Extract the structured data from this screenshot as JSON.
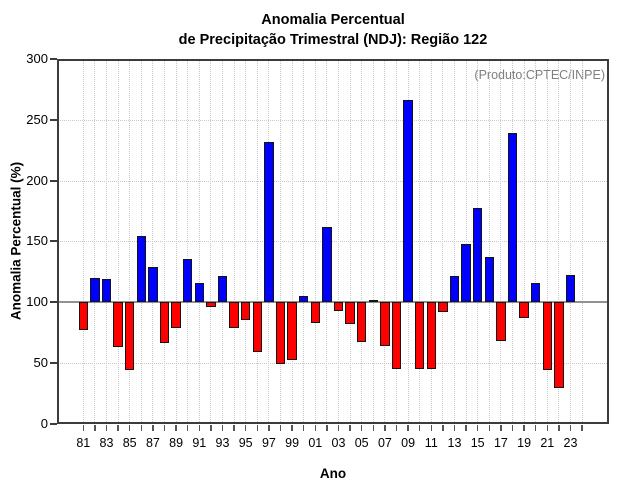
{
  "chart_data": {
    "type": "bar",
    "title_lines": [
      "Anomalia Percentual",
      "de Precipitação Trimestral (NDJ): Região 122"
    ],
    "annotation": "(Produto:CPTEC/INPE)",
    "xlabel": "Ano",
    "ylabel": "Anomalia Percentual (%)",
    "ylim": [
      0,
      300
    ],
    "y_ticks": [
      0,
      50,
      100,
      150,
      200,
      250,
      300
    ],
    "baseline": 100,
    "grid": "dotted vertical line per year, dotted horizontal line per 50 units, solid gray line at 100",
    "legend": "none",
    "x_labeled_ticks": [
      "81",
      "83",
      "85",
      "87",
      "89",
      "91",
      "93",
      "95",
      "97",
      "99",
      "01",
      "03",
      "05",
      "07",
      "09",
      "11",
      "13",
      "15",
      "17",
      "19",
      "21",
      "23"
    ],
    "categories": [
      "81",
      "82",
      "83",
      "84",
      "85",
      "86",
      "87",
      "88",
      "89",
      "90",
      "91",
      "92",
      "93",
      "94",
      "95",
      "96",
      "97",
      "98",
      "99",
      "00",
      "01",
      "02",
      "03",
      "04",
      "05",
      "06",
      "07",
      "08",
      "09",
      "10",
      "11",
      "12",
      "13",
      "14",
      "15",
      "16",
      "17",
      "18",
      "19",
      "20",
      "21",
      "22",
      "23"
    ],
    "values": [
      77,
      120,
      119,
      63,
      44,
      154,
      129,
      66,
      79,
      135,
      116,
      96,
      121,
      79,
      85,
      59,
      232,
      49,
      52,
      105,
      83,
      162,
      93,
      82,
      67,
      102,
      64,
      45,
      266,
      45,
      45,
      92,
      121,
      148,
      177,
      137,
      68,
      239,
      87,
      116,
      44,
      29,
      122
    ],
    "color_above_baseline": "#0000ff",
    "color_below_baseline": "#ff0000",
    "bar_border_color": "#141414"
  }
}
